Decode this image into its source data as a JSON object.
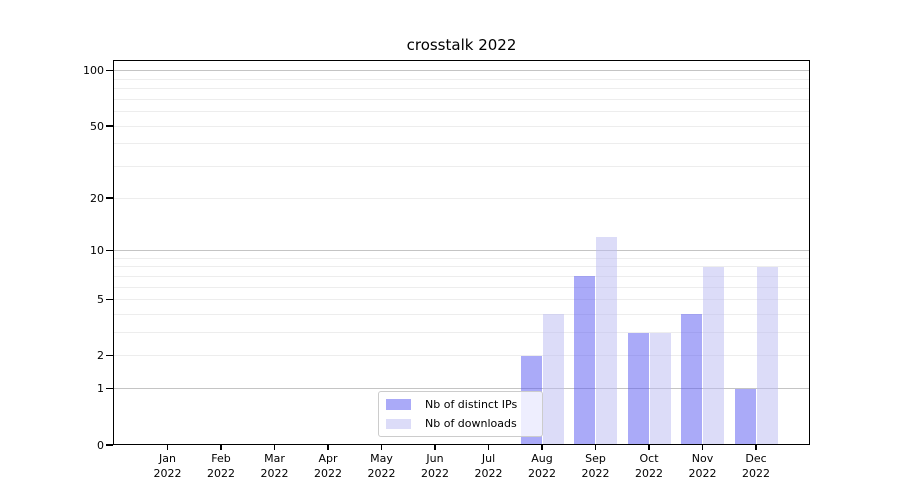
{
  "chart_data": {
    "type": "bar",
    "title": "crosstalk 2022",
    "xlabel": "",
    "ylabel": "",
    "yscale": "log1p",
    "ylim": [
      0,
      115
    ],
    "yticks": [
      0,
      1,
      2,
      5,
      10,
      20,
      50,
      100
    ],
    "major_gridlines": [
      1,
      10,
      100
    ],
    "minor_gridlines": [
      2,
      3,
      4,
      5,
      6,
      7,
      8,
      9,
      20,
      30,
      40,
      50,
      60,
      70,
      80,
      90
    ],
    "grid_major_color": "#c4c4c4",
    "grid_minor_color": "#ededed",
    "categories": [
      "Jan 2022",
      "Feb 2022",
      "Mar 2022",
      "Apr 2022",
      "May 2022",
      "Jun 2022",
      "Jul 2022",
      "Aug 2022",
      "Sep 2022",
      "Oct 2022",
      "Nov 2022",
      "Dec 2022"
    ],
    "series": [
      {
        "name": "Nb of distinct IPs",
        "color": "rgba(85,85,241,0.5)",
        "solid_color": "#aaaaf8",
        "values": [
          0,
          0,
          0,
          0,
          0,
          0,
          0,
          2,
          7,
          3,
          4,
          1
        ]
      },
      {
        "name": "Nb of downloads",
        "color": "rgba(185,185,241,0.5)",
        "solid_color": "#dcdcf8",
        "values": [
          0,
          0,
          0,
          0,
          0,
          0,
          0,
          4,
          12,
          3,
          8,
          8
        ]
      }
    ],
    "legend": {
      "position": "lower center",
      "entries": [
        "Nb of distinct IPs",
        "Nb of downloads"
      ]
    }
  }
}
